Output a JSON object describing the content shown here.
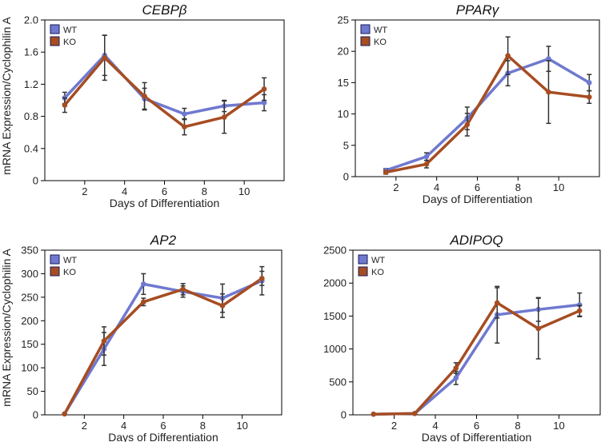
{
  "figure": {
    "ylabel_top": "mRNA Expression/Cyclophilin A",
    "ylabel_bottom": "mRNA Expression/Cyclophilin A"
  },
  "colors": {
    "WT": "#6f79cf",
    "KO": "#a64d22",
    "error_bar": "#333333"
  },
  "chart_data": [
    {
      "id": "cebpb",
      "type": "line",
      "title": "CEBPβ",
      "xlabel": "Days of Differentiation",
      "ylabel": "mRNA Expression/Cyclophilin A",
      "xlim": [
        0,
        12
      ],
      "ylim": [
        0,
        2.0
      ],
      "xticks": [
        2,
        4,
        6,
        8,
        10
      ],
      "yticks": [
        0,
        0.4,
        0.8,
        1.2,
        1.6,
        2.0
      ],
      "ytick_labels": [
        "0",
        "0.4",
        "0.8",
        "1.2",
        "1.6",
        "2.0"
      ],
      "legend": [
        "WT",
        "KO"
      ],
      "series": [
        {
          "name": "WT",
          "x": [
            1,
            3,
            5,
            7,
            9,
            11
          ],
          "values": [
            1.03,
            1.56,
            1.02,
            0.83,
            0.93,
            0.97
          ],
          "err": [
            0.07,
            0.25,
            0.13,
            0.07,
            0.07,
            0.1
          ]
        },
        {
          "name": "KO",
          "x": [
            1,
            3,
            5,
            7,
            9,
            11
          ],
          "values": [
            0.94,
            1.53,
            1.05,
            0.67,
            0.79,
            1.14
          ],
          "err": [
            0.09,
            0.28,
            0.17,
            0.1,
            0.2,
            0.14
          ]
        }
      ]
    },
    {
      "id": "pparg",
      "type": "line",
      "title": "PPARγ",
      "xlabel": "Days of Differentiation",
      "ylabel": "",
      "xlim": [
        0,
        12
      ],
      "ylim": [
        0,
        25
      ],
      "xticks": [
        2,
        4,
        6,
        8,
        10
      ],
      "yticks": [
        0,
        5,
        10,
        15,
        20,
        25
      ],
      "ytick_labels": [
        "0",
        "5",
        "10",
        "15",
        "20",
        "25"
      ],
      "legend": [
        "WT",
        "KO"
      ],
      "series": [
        {
          "name": "WT",
          "x": [
            1.5,
            3.5,
            5.5,
            7.5,
            9.5,
            11.5
          ],
          "values": [
            1.0,
            3.2,
            9.3,
            16.5,
            18.8,
            15.0
          ],
          "err": [
            0.3,
            0.6,
            1.8,
            2.0,
            2.0,
            1.3
          ]
        },
        {
          "name": "KO",
          "x": [
            1.5,
            3.5,
            5.5,
            7.5,
            9.5,
            11.5
          ],
          "values": [
            0.7,
            2.0,
            8.3,
            19.3,
            13.5,
            12.7
          ],
          "err": [
            0.3,
            0.6,
            1.8,
            3.0,
            5.0,
            1.0
          ]
        }
      ]
    },
    {
      "id": "ap2",
      "type": "line",
      "title": "AP2",
      "xlabel": "Days of Differentiation",
      "ylabel": "mRNA Expression/Cyclophilin A",
      "xlim": [
        0,
        12
      ],
      "ylim": [
        0,
        350
      ],
      "xticks": [
        2,
        4,
        6,
        8,
        10
      ],
      "yticks": [
        0,
        50,
        100,
        150,
        200,
        250,
        300,
        350
      ],
      "ytick_labels": [
        "0",
        "50",
        "100",
        "150",
        "200",
        "250",
        "300",
        "350"
      ],
      "legend": [
        "WT",
        "KO"
      ],
      "series": [
        {
          "name": "WT",
          "x": [
            1,
            3,
            5,
            7,
            9,
            11
          ],
          "values": [
            2,
            140,
            278,
            262,
            248,
            285
          ],
          "err": [
            0,
            35,
            22,
            12,
            30,
            30
          ]
        },
        {
          "name": "KO",
          "x": [
            1,
            3,
            5,
            7,
            9,
            11
          ],
          "values": [
            2,
            157,
            240,
            267,
            232,
            290
          ],
          "err": [
            0,
            30,
            8,
            12,
            25,
            15
          ]
        }
      ]
    },
    {
      "id": "adipoq",
      "type": "line",
      "title": "ADIPOQ",
      "xlabel": "Days of Differentiation",
      "ylabel": "",
      "xlim": [
        0,
        12
      ],
      "ylim": [
        0,
        2500
      ],
      "xticks": [
        2,
        4,
        6,
        8,
        10
      ],
      "yticks": [
        0,
        500,
        1000,
        1500,
        2000,
        2500
      ],
      "ytick_labels": [
        "0",
        "500",
        "1000",
        "1500",
        "2000",
        "2500"
      ],
      "legend": [
        "WT",
        "KO"
      ],
      "series": [
        {
          "name": "WT",
          "x": [
            1,
            3,
            5,
            7,
            9,
            11
          ],
          "values": [
            10,
            20,
            560,
            1520,
            1600,
            1670
          ],
          "err": [
            0,
            0,
            100,
            430,
            180,
            180
          ]
        },
        {
          "name": "KO",
          "x": [
            1,
            3,
            5,
            7,
            9,
            11
          ],
          "values": [
            10,
            20,
            710,
            1700,
            1310,
            1580
          ],
          "err": [
            0,
            0,
            80,
            230,
            460,
            80
          ]
        }
      ]
    }
  ]
}
